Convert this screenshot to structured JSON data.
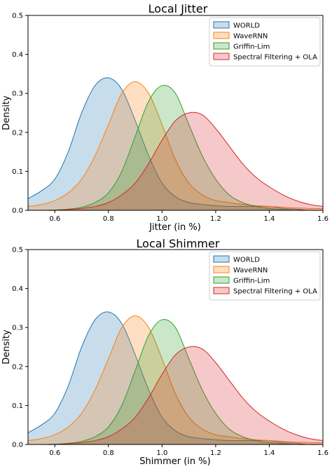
{
  "chart_data": [
    {
      "type": "area",
      "title": "Local Jitter",
      "xlabel": "Jitter (in %)",
      "ylabel": "Density",
      "xlim": [
        0.5,
        1.6
      ],
      "ylim": [
        0,
        0.5
      ],
      "xticks": [
        "0.6",
        "0.8",
        "1.0",
        "1.2",
        "1.4",
        "1.6"
      ],
      "yticks": [
        "0.0",
        "0.1",
        "0.2",
        "0.3",
        "0.4",
        "0.5"
      ],
      "grid": false,
      "legend": "top-right",
      "x": [
        0.5,
        0.55,
        0.6,
        0.65,
        0.7,
        0.75,
        0.8,
        0.85,
        0.9,
        0.95,
        1.0,
        1.05,
        1.1,
        1.15,
        1.2,
        1.25,
        1.3,
        1.35,
        1.4,
        1.45,
        1.5,
        1.55,
        1.6
      ],
      "series": [
        {
          "name": "WORLD",
          "color": "#1f77b4",
          "values": [
            0.03,
            0.05,
            0.08,
            0.15,
            0.25,
            0.32,
            0.34,
            0.31,
            0.23,
            0.14,
            0.07,
            0.035,
            0.02,
            0.015,
            0.012,
            0.01,
            0.01,
            0.01,
            0.01,
            0.005,
            0.003,
            0.0,
            0.0
          ]
        },
        {
          "name": "WaveRNN",
          "color": "#ff7f0e",
          "values": [
            0.01,
            0.015,
            0.025,
            0.045,
            0.08,
            0.14,
            0.22,
            0.3,
            0.33,
            0.3,
            0.22,
            0.13,
            0.07,
            0.04,
            0.025,
            0.02,
            0.015,
            0.012,
            0.01,
            0.008,
            0.006,
            0.005,
            0.004
          ]
        },
        {
          "name": "Griffin-Lim",
          "color": "#2ca02c",
          "values": [
            0.0,
            0.0,
            0.001,
            0.003,
            0.008,
            0.02,
            0.045,
            0.1,
            0.19,
            0.28,
            0.32,
            0.3,
            0.22,
            0.14,
            0.08,
            0.04,
            0.02,
            0.01,
            0.005,
            0.002,
            0.0,
            0.0,
            0.0
          ]
        },
        {
          "name": "Spectral Filtering + OLA",
          "color": "#d62728",
          "values": [
            0.0,
            0.0,
            0.0,
            0.002,
            0.005,
            0.01,
            0.02,
            0.04,
            0.07,
            0.12,
            0.18,
            0.23,
            0.25,
            0.245,
            0.21,
            0.165,
            0.12,
            0.085,
            0.06,
            0.04,
            0.025,
            0.015,
            0.01
          ]
        }
      ]
    },
    {
      "type": "area",
      "title": "Local Shimmer",
      "xlabel": "Shimmer (in %)",
      "ylabel": "Density",
      "xlim": [
        0.5,
        1.6
      ],
      "ylim": [
        0,
        0.5
      ],
      "xticks": [
        "0.6",
        "0.8",
        "1.0",
        "1.2",
        "1.4",
        "1.6"
      ],
      "yticks": [
        "0.0",
        "0.1",
        "0.2",
        "0.3",
        "0.4",
        "0.5"
      ],
      "grid": false,
      "legend": "top-right",
      "x": [
        0.5,
        0.55,
        0.6,
        0.65,
        0.7,
        0.75,
        0.8,
        0.85,
        0.9,
        0.95,
        1.0,
        1.05,
        1.1,
        1.15,
        1.2,
        1.25,
        1.3,
        1.35,
        1.4,
        1.45,
        1.5,
        1.55,
        1.6
      ],
      "series": [
        {
          "name": "WORLD",
          "color": "#1f77b4",
          "values": [
            0.03,
            0.05,
            0.08,
            0.15,
            0.25,
            0.32,
            0.34,
            0.31,
            0.23,
            0.14,
            0.07,
            0.035,
            0.02,
            0.015,
            0.012,
            0.01,
            0.01,
            0.01,
            0.01,
            0.005,
            0.003,
            0.0,
            0.0
          ]
        },
        {
          "name": "WaveRNN",
          "color": "#ff7f0e",
          "values": [
            0.01,
            0.015,
            0.025,
            0.045,
            0.08,
            0.14,
            0.22,
            0.3,
            0.33,
            0.3,
            0.22,
            0.13,
            0.07,
            0.04,
            0.025,
            0.02,
            0.015,
            0.012,
            0.01,
            0.008,
            0.006,
            0.005,
            0.004
          ]
        },
        {
          "name": "Griffin-Lim",
          "color": "#2ca02c",
          "values": [
            0.0,
            0.0,
            0.001,
            0.003,
            0.008,
            0.02,
            0.045,
            0.1,
            0.19,
            0.28,
            0.32,
            0.3,
            0.22,
            0.14,
            0.08,
            0.04,
            0.02,
            0.01,
            0.005,
            0.002,
            0.0,
            0.0,
            0.0
          ]
        },
        {
          "name": "Spectral Filtering + OLA",
          "color": "#d62728",
          "values": [
            0.0,
            0.0,
            0.0,
            0.002,
            0.005,
            0.01,
            0.02,
            0.04,
            0.07,
            0.12,
            0.18,
            0.23,
            0.25,
            0.245,
            0.21,
            0.165,
            0.12,
            0.085,
            0.06,
            0.04,
            0.025,
            0.015,
            0.01
          ]
        }
      ]
    }
  ]
}
